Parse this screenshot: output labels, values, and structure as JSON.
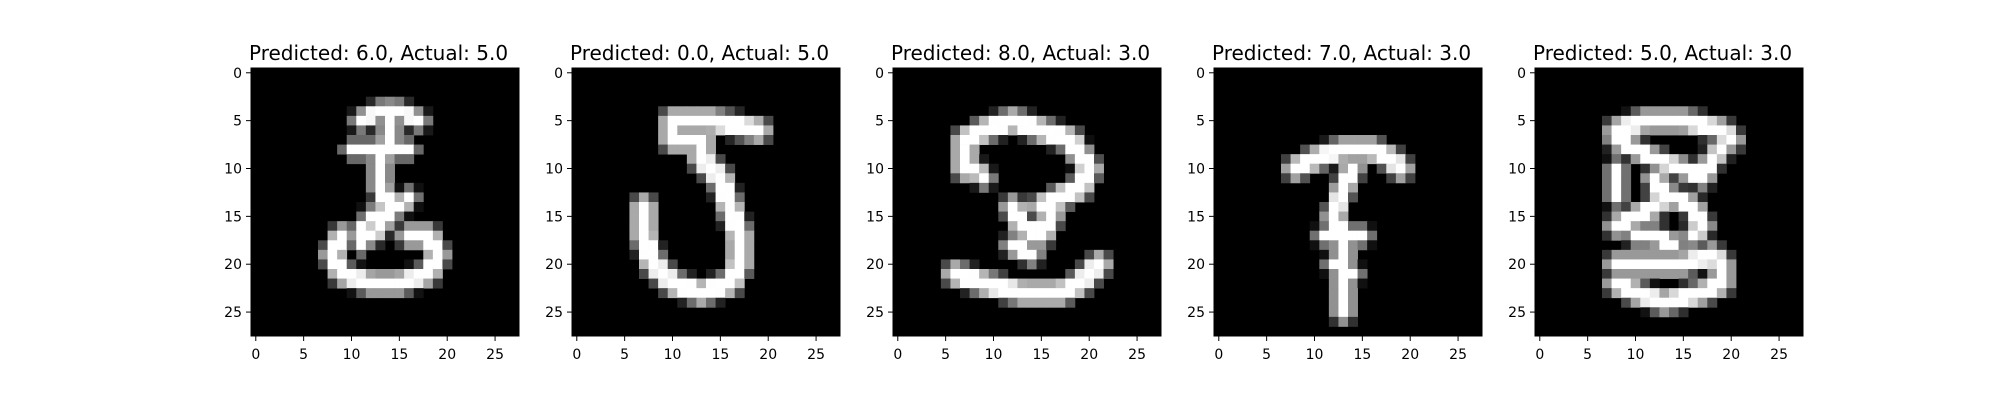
{
  "figure": {
    "background": "#ffffff",
    "image_colormap": "gray",
    "panels": [
      {
        "title": "Predicted: 6.0, Actual: 5.0",
        "xticks": [
          "0",
          "5",
          "10",
          "15",
          "20",
          "25"
        ],
        "yticks": [
          "0",
          "5",
          "10",
          "15",
          "20",
          "25"
        ],
        "image_description": "handwritten digit resembling a 3, 28x28 grayscale"
      },
      {
        "title": "Predicted: 0.0, Actual: 5.0",
        "xticks": [
          "0",
          "5",
          "10",
          "15",
          "20",
          "25"
        ],
        "yticks": [
          "0",
          "5",
          "10",
          "15",
          "20",
          "25"
        ],
        "image_description": "handwritten digit 5, 28x28 grayscale"
      },
      {
        "title": "Predicted: 8.0, Actual: 3.0",
        "xticks": [
          "0",
          "5",
          "10",
          "15",
          "20",
          "25"
        ],
        "yticks": [
          "0",
          "5",
          "10",
          "15",
          "20",
          "25"
        ],
        "image_description": "handwritten digit resembling a 3 / question mark, 28x28 grayscale"
      },
      {
        "title": "Predicted: 7.0, Actual: 3.0",
        "xticks": [
          "0",
          "5",
          "10",
          "15",
          "20",
          "25"
        ],
        "yticks": [
          "0",
          "5",
          "10",
          "15",
          "20",
          "25"
        ],
        "image_description": "handwritten digit resembling a 7 with long tail, 28x28 grayscale"
      },
      {
        "title": "Predicted: 5.0, Actual: 3.0",
        "xticks": [
          "0",
          "5",
          "10",
          "15",
          "20",
          "25"
        ],
        "yticks": [
          "0",
          "5",
          "10",
          "15",
          "20",
          "25"
        ],
        "image_description": "handwritten digit 3 with extra strokes, 28x28 grayscale"
      }
    ]
  }
}
